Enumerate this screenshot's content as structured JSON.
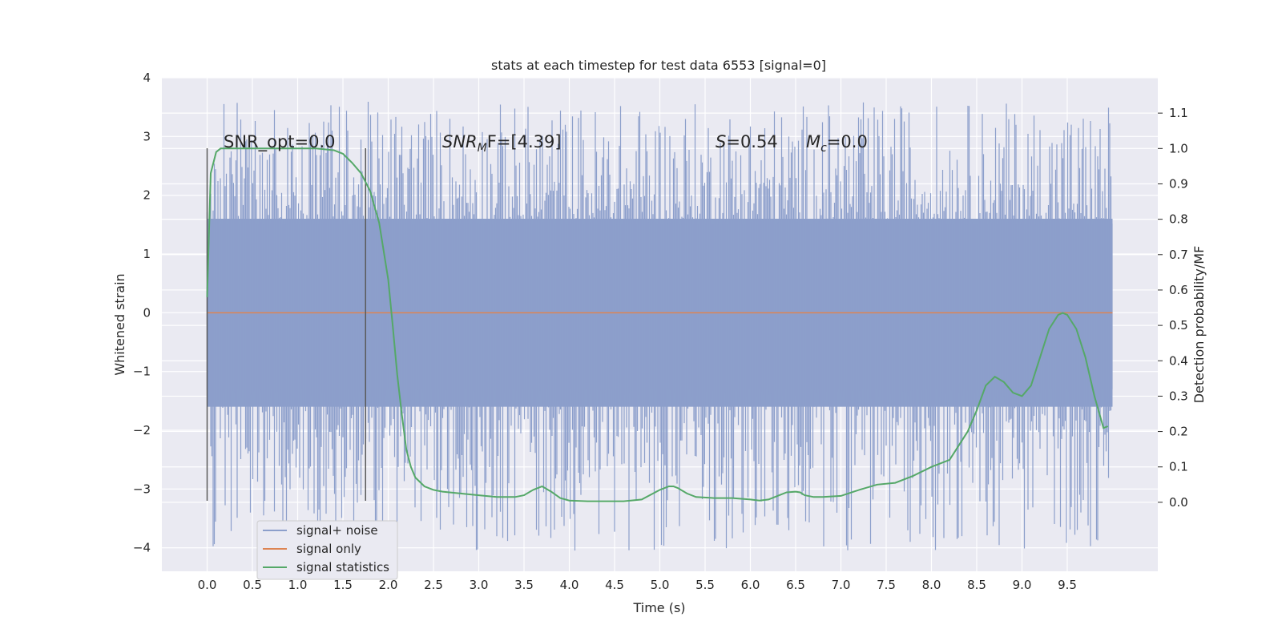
{
  "chart_data": {
    "type": "line",
    "title": "stats at each timestep for test data 6553 [signal=0]",
    "xlabel": "Time (s)",
    "ylabel": "Whitened strain",
    "ylabel_right": "Detection probability/MF",
    "xlim": [
      -0.5,
      10.5
    ],
    "ylim": [
      -4.4,
      4.0
    ],
    "ylim_right": [
      -0.195,
      1.2
    ],
    "x_ticks": [
      "0.0",
      "0.5",
      "1.0",
      "1.5",
      "2.0",
      "2.5",
      "3.0",
      "3.5",
      "4.0",
      "4.5",
      "5.0",
      "5.5",
      "6.0",
      "6.5",
      "7.0",
      "7.5",
      "8.0",
      "8.5",
      "9.0",
      "9.5"
    ],
    "y_ticks": [
      "4",
      "3",
      "2",
      "1",
      "0",
      "−1",
      "−2",
      "−3",
      "−4"
    ],
    "y_ticks_right": [
      "1.1",
      "1.0",
      "0.9",
      "0.8",
      "0.7",
      "0.6",
      "0.5",
      "0.4",
      "0.3",
      "0.2",
      "0.1",
      "0.0"
    ],
    "grid": true,
    "legend_position": "lower-left",
    "colors": {
      "background": "#eaeaf2",
      "grid": "#ffffff",
      "noise": "#8c9fcb",
      "signal": "#dd8452",
      "statistics": "#55a868",
      "marker": "#5a5a5a"
    },
    "series": [
      {
        "name": "signal+ noise",
        "envelope": {
          "x": [
            0.0,
            10.0
          ],
          "y_min_range": [
            -4.05,
            -1.3
          ],
          "y_max_range": [
            1.5,
            3.6
          ],
          "dense_band": [
            -1.6,
            1.6
          ]
        }
      },
      {
        "name": "signal only",
        "x": [
          0.0,
          10.0
        ],
        "y": [
          0.0,
          0.0
        ]
      },
      {
        "name": "signal statistics",
        "axis": "right",
        "x": [
          0.0,
          0.04,
          0.1,
          0.15,
          0.25,
          0.5,
          0.8,
          1.0,
          1.2,
          1.4,
          1.5,
          1.6,
          1.7,
          1.8,
          1.9,
          2.0,
          2.05,
          2.1,
          2.15,
          2.2,
          2.25,
          2.3,
          2.4,
          2.5,
          2.6,
          2.8,
          3.0,
          3.2,
          3.4,
          3.5,
          3.6,
          3.7,
          3.8,
          3.9,
          4.0,
          4.2,
          4.4,
          4.6,
          4.8,
          5.0,
          5.1,
          5.15,
          5.2,
          5.3,
          5.4,
          5.6,
          5.8,
          6.0,
          6.1,
          6.2,
          6.3,
          6.4,
          6.5,
          6.55,
          6.6,
          6.7,
          6.8,
          7.0,
          7.2,
          7.4,
          7.6,
          7.8,
          8.0,
          8.2,
          8.4,
          8.5,
          8.6,
          8.7,
          8.8,
          8.9,
          9.0,
          9.1,
          9.2,
          9.3,
          9.4,
          9.45,
          9.5,
          9.6,
          9.7,
          9.8,
          9.9,
          9.95
        ],
        "y": [
          0.58,
          0.93,
          0.99,
          1.0,
          1.0,
          1.0,
          1.0,
          1.0,
          1.0,
          0.995,
          0.985,
          0.96,
          0.93,
          0.88,
          0.79,
          0.63,
          0.5,
          0.36,
          0.25,
          0.15,
          0.1,
          0.07,
          0.045,
          0.035,
          0.03,
          0.025,
          0.02,
          0.015,
          0.015,
          0.02,
          0.035,
          0.045,
          0.03,
          0.012,
          0.005,
          0.003,
          0.003,
          0.003,
          0.008,
          0.035,
          0.045,
          0.045,
          0.04,
          0.025,
          0.015,
          0.012,
          0.012,
          0.008,
          0.005,
          0.008,
          0.018,
          0.028,
          0.03,
          0.028,
          0.02,
          0.015,
          0.015,
          0.018,
          0.035,
          0.05,
          0.055,
          0.075,
          0.1,
          0.12,
          0.2,
          0.26,
          0.33,
          0.355,
          0.34,
          0.31,
          0.3,
          0.33,
          0.41,
          0.49,
          0.53,
          0.535,
          0.53,
          0.49,
          0.41,
          0.3,
          0.21,
          0.215
        ]
      }
    ],
    "vertical_markers": [
      {
        "x": 0.0,
        "y_range": [
          -3.2,
          2.8
        ]
      },
      {
        "x": 1.75,
        "y_range": [
          -3.2,
          2.8
        ]
      }
    ],
    "annotations": [
      {
        "id": "snr-opt",
        "x": 0.2,
        "y": 2.85,
        "text": "SNR_opt=0.0"
      },
      {
        "id": "snr-mf",
        "x": 2.6,
        "y": 2.85,
        "text_main": "SNR",
        "text_sub": "M",
        "text_suffix": "F=[4.39]"
      },
      {
        "id": "s-stat",
        "x": 5.6,
        "y": 2.85,
        "text_main": "S",
        "text_suffix": "=0.54"
      },
      {
        "id": "mc",
        "x": 6.6,
        "y": 2.85,
        "text_main": "M",
        "text_sub": "c",
        "text_suffix": "=0.0"
      }
    ]
  }
}
